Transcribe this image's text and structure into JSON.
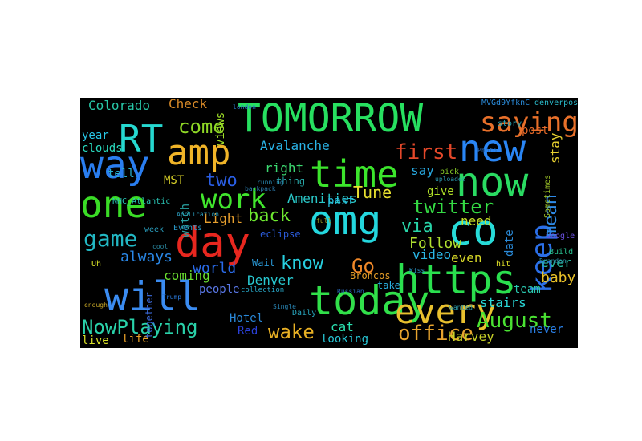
{
  "words": [
    {
      "text": "TOMORROW",
      "color": "#27e060"
    },
    {
      "text": "https",
      "color": "#2adf4e"
    },
    {
      "text": "today",
      "color": "#31e04a"
    },
    {
      "text": "will",
      "color": "#3b8cf1"
    },
    {
      "text": "omg",
      "color": "#24d7de"
    },
    {
      "text": "day",
      "color": "#e8271f"
    },
    {
      "text": "co",
      "color": "#27dbd8"
    },
    {
      "text": "time",
      "color": "#3ce52c"
    },
    {
      "text": "now",
      "color": "#2adb62"
    },
    {
      "text": "new",
      "color": "#2a86f5"
    },
    {
      "text": "way",
      "color": "#2a7ef0"
    },
    {
      "text": "one",
      "color": "#3adc26"
    },
    {
      "text": "RT",
      "color": "#26d8d0"
    },
    {
      "text": "amp",
      "color": "#f0b428"
    },
    {
      "text": "every",
      "color": "#e9c02e"
    },
    {
      "text": "work",
      "color": "#41e52d"
    },
    {
      "text": "saying",
      "color": "#e8702a"
    },
    {
      "text": "office",
      "color": "#e8a42e"
    },
    {
      "text": "game",
      "color": "#22b7c3"
    },
    {
      "text": "keep",
      "color": "#2b6fe8"
    },
    {
      "text": "August",
      "color": "#4ae232"
    },
    {
      "text": "first",
      "color": "#e4482a"
    },
    {
      "text": "twitter",
      "color": "#34db44"
    },
    {
      "text": "NowPlaying",
      "color": "#2ad2aa"
    },
    {
      "text": "wake",
      "color": "#e8b024"
    },
    {
      "text": "come",
      "color": "#8fd826"
    },
    {
      "text": "back",
      "color": "#6ee830"
    },
    {
      "text": "know",
      "color": "#28d0e0"
    },
    {
      "text": "Go",
      "color": "#f08828"
    },
    {
      "text": "via",
      "color": "#28d4a8"
    },
    {
      "text": "two",
      "color": "#2a5ee4"
    },
    {
      "text": "mean",
      "color": "#2e8ae8"
    },
    {
      "text": "Colorado",
      "color": "#28c8a8"
    },
    {
      "text": "Check",
      "color": "#d88a28"
    },
    {
      "text": "Avalanche",
      "color": "#2ab4e8"
    },
    {
      "text": "Tune",
      "color": "#e8e030"
    },
    {
      "text": "always",
      "color": "#2a88e8"
    },
    {
      "text": "world",
      "color": "#2a6ae8"
    },
    {
      "text": "Light",
      "color": "#e8a02e"
    },
    {
      "text": "right",
      "color": "#3cd870"
    },
    {
      "text": "Follow",
      "color": "#b0e030"
    },
    {
      "text": "video",
      "color": "#2ab8e8"
    },
    {
      "text": "coming",
      "color": "#6ae030"
    },
    {
      "text": "Denver",
      "color": "#28c8d0"
    },
    {
      "text": "baby",
      "color": "#e8c028"
    },
    {
      "text": "stay",
      "color": "#e8d030"
    },
    {
      "text": "even",
      "color": "#d8d828"
    },
    {
      "text": "need",
      "color": "#c8e028"
    },
    {
      "text": "ever",
      "color": "#28b8a0"
    },
    {
      "text": "say",
      "color": "#28a8e0"
    },
    {
      "text": "post",
      "color": "#e86a2a"
    },
    {
      "text": "year",
      "color": "#28c8e8"
    },
    {
      "text": "clouds",
      "color": "#2adcc0"
    },
    {
      "text": "people",
      "color": "#5a78e8"
    },
    {
      "text": "cat",
      "color": "#2ae0b0"
    },
    {
      "text": "Harvey",
      "color": "#c8d028"
    },
    {
      "text": "stairs",
      "color": "#2ad8d8"
    },
    {
      "text": "team",
      "color": "#2ac8b0"
    },
    {
      "text": "never",
      "color": "#2a80e8"
    },
    {
      "text": "life",
      "color": "#e8a028"
    },
    {
      "text": "looking",
      "color": "#28c8d8"
    },
    {
      "text": "Amenities",
      "color": "#2ac8c8"
    },
    {
      "text": "eclipse",
      "color": "#2a5ad8"
    },
    {
      "text": "MST",
      "color": "#d8d028"
    },
    {
      "text": "thing",
      "color": "#28a8a8"
    },
    {
      "text": "past",
      "color": "#28c0e0"
    },
    {
      "text": "give",
      "color": "#b0e028"
    },
    {
      "text": "tell",
      "color": "#28b0d0"
    },
    {
      "text": "watch",
      "color": "#28a0a0"
    },
    {
      "text": "views",
      "color": "#a0e028"
    },
    {
      "text": "Hotel",
      "color": "#2a88d8"
    },
    {
      "text": "Wait",
      "color": "#2a9ad8"
    },
    {
      "text": "Red",
      "color": "#2a40d8"
    },
    {
      "text": "live",
      "color": "#d8e028"
    },
    {
      "text": "take",
      "color": "#2ab0e0"
    },
    {
      "text": "date",
      "color": "#2a8ad8"
    },
    {
      "text": "Broncos",
      "color": "#e8a028"
    },
    {
      "text": "Build",
      "color": "#28c090"
    },
    {
      "text": "Daily",
      "color": "#28a8c0"
    },
    {
      "text": "pick",
      "color": "#8ad028"
    },
    {
      "text": "Google",
      "color": "#6a50e0"
    },
    {
      "text": "Sometimes",
      "color": "#a0c828"
    },
    {
      "text": "denverpost",
      "color": "#2ab8c8"
    },
    {
      "text": "story",
      "color": "#28a8b8"
    },
    {
      "text": "together",
      "color": "#3a68d8"
    },
    {
      "text": "week",
      "color": "#2aa0c0"
    },
    {
      "text": "Events",
      "color": "#2a98c8"
    },
    {
      "text": "NHC_Atlantic",
      "color": "#2ac8b8"
    },
    {
      "text": "Uh",
      "color": "#d8e028"
    },
    {
      "text": "MVGd9YfknC",
      "color": "#2a8ad8"
    },
    {
      "text": "collection",
      "color": "#28a8c8"
    },
    {
      "text": "Application",
      "color": "#2a98b8"
    },
    {
      "text": "london",
      "color": "#2a78c8"
    },
    {
      "text": "Trump",
      "color": "#2a78d8"
    },
    {
      "text": "cool",
      "color": "#2a88a0"
    },
    {
      "text": "full",
      "color": "#a0a028"
    },
    {
      "text": "hit",
      "color": "#e0e028"
    },
    {
      "text": "uploaded",
      "color": "#2a98b0"
    },
    {
      "text": "Single",
      "color": "#2a88b8"
    },
    {
      "text": "Russian",
      "color": "#2a68b8"
    },
    {
      "text": "running",
      "color": "#2a88b0"
    },
    {
      "text": "backpack",
      "color": "#2a78a8"
    },
    {
      "text": "Photo",
      "color": "#2a68b0"
    },
    {
      "text": "Kiss",
      "color": "#2a90c0"
    },
    {
      "text": "wanted",
      "color": "#2a98a8"
    },
    {
      "text": "enough",
      "color": "#c8a828"
    },
    {
      "text": "Brandon",
      "color": "#2a90a8"
    }
  ]
}
